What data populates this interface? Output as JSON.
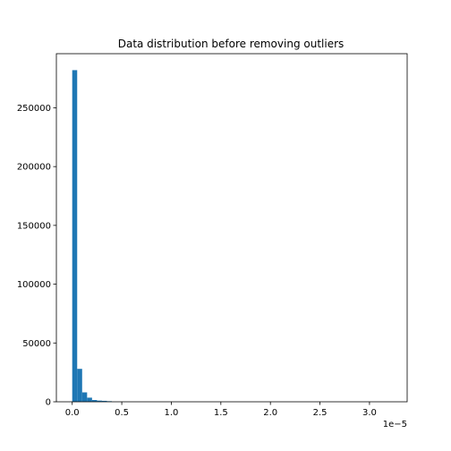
{
  "chart_data": {
    "type": "bar",
    "title": "Data distribution before removing outliers",
    "xlabel": "",
    "ylabel": "",
    "x_offset_label": "1e−5",
    "x_scale": 1e-05,
    "xlim": [
      -0.16,
      3.38
    ],
    "ylim": [
      0,
      296000
    ],
    "bin_width": 0.05,
    "bin_starts": [
      0.0,
      0.05,
      0.1,
      0.15,
      0.2,
      0.25,
      0.3,
      0.35
    ],
    "values": [
      282000,
      28000,
      8000,
      3500,
      1500,
      1000,
      800,
      500
    ],
    "x_ticks": [
      0.0,
      0.5,
      1.0,
      1.5,
      2.0,
      2.5,
      3.0
    ],
    "x_tick_labels": [
      "0.0",
      "0.5",
      "1.0",
      "1.5",
      "2.0",
      "2.5",
      "3.0"
    ],
    "y_ticks": [
      0,
      50000,
      100000,
      150000,
      200000,
      250000
    ],
    "y_tick_labels": [
      "0",
      "50000",
      "100000",
      "150000",
      "200000",
      "250000"
    ],
    "bar_color": "#1f77b4",
    "grid": false,
    "legend": "none"
  }
}
